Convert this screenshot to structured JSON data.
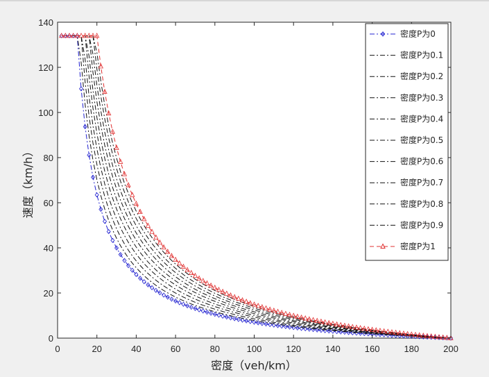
{
  "chart_data": {
    "type": "line",
    "title": "",
    "xlabel": "密度（veh/km）",
    "ylabel": "速度（km/h）",
    "xlim": [
      0,
      200
    ],
    "ylim": [
      0,
      140
    ],
    "xticks": [
      0,
      20,
      40,
      60,
      80,
      100,
      120,
      140,
      160,
      180,
      200
    ],
    "yticks": [
      0,
      20,
      40,
      60,
      80,
      100,
      120,
      140
    ],
    "grid": false,
    "legend_position": "top-right",
    "model": {
      "vmax": 134,
      "jam_density": 200,
      "critical_density_by_p": {
        "start": 10,
        "end": 20
      },
      "sample_step": 2
    },
    "series": [
      {
        "name": "密度P为0",
        "p": 0,
        "color": "#2020d0",
        "marker": "diamond",
        "line": "dashdot"
      },
      {
        "name": "密度P为0.1",
        "p": 0.1,
        "color": "#111111",
        "marker": "none",
        "line": "dashdot"
      },
      {
        "name": "密度P为0.2",
        "p": 0.2,
        "color": "#111111",
        "marker": "none",
        "line": "dashdot"
      },
      {
        "name": "密度P为0.3",
        "p": 0.3,
        "color": "#111111",
        "marker": "none",
        "line": "dashdot"
      },
      {
        "name": "密度P为0.4",
        "p": 0.4,
        "color": "#111111",
        "marker": "none",
        "line": "dashdot"
      },
      {
        "name": "密度P为0.5",
        "p": 0.5,
        "color": "#111111",
        "marker": "none",
        "line": "dashdot"
      },
      {
        "name": "密度P为0.6",
        "p": 0.6,
        "color": "#111111",
        "marker": "none",
        "line": "dashdot"
      },
      {
        "name": "密度P为0.7",
        "p": 0.7,
        "color": "#111111",
        "marker": "none",
        "line": "dashdot"
      },
      {
        "name": "密度P为0.8",
        "p": 0.8,
        "color": "#111111",
        "marker": "none",
        "line": "dashdot"
      },
      {
        "name": "密度P为0.9",
        "p": 0.9,
        "color": "#111111",
        "marker": "none",
        "line": "dashdot"
      },
      {
        "name": "密度P为1",
        "p": 1,
        "color": "#e03030",
        "marker": "triangle",
        "line": "dashed"
      }
    ]
  }
}
